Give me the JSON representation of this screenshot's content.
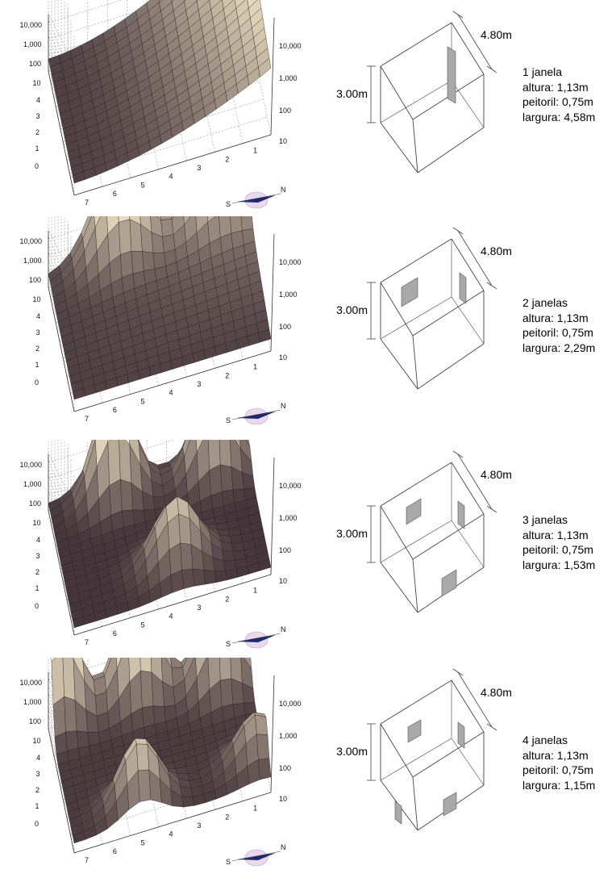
{
  "chart_data": [
    {
      "type": "surface",
      "windows": 1,
      "z_scale": "log",
      "z_ticks_left": [
        "10,000",
        "1,000",
        "100",
        "10",
        "4",
        "3",
        "2",
        "1",
        "0"
      ],
      "z_ticks_right": [
        "10,000",
        "1,000",
        "100",
        "10"
      ],
      "x_ticks": [
        "7",
        "6",
        "5",
        "4",
        "3",
        "2",
        "1"
      ]
    },
    {
      "type": "surface",
      "windows": 2,
      "z_scale": "log",
      "z_ticks_left": [
        "10,000",
        "1,000",
        "100",
        "10",
        "4",
        "3",
        "2",
        "1",
        "0"
      ],
      "z_ticks_right": [
        "10,000",
        "1,000",
        "100",
        "10"
      ],
      "x_ticks": [
        "7",
        "6",
        "5",
        "4",
        "3",
        "2",
        "1"
      ]
    },
    {
      "type": "surface",
      "windows": 3,
      "z_scale": "log",
      "z_ticks_left": [
        "10,000",
        "1,000",
        "100",
        "10",
        "4",
        "3",
        "2",
        "1",
        "0"
      ],
      "z_ticks_right": [
        "10,000",
        "1,000",
        "100",
        "10"
      ],
      "x_ticks": [
        "7",
        "6",
        "5",
        "4",
        "3",
        "2",
        "1"
      ]
    },
    {
      "type": "surface",
      "windows": 4,
      "z_scale": "log",
      "z_ticks_left": [
        "10,000",
        "1,000",
        "100",
        "10",
        "4",
        "3",
        "2",
        "1",
        "0"
      ],
      "z_ticks_right": [
        "10,000",
        "1,000",
        "100",
        "10"
      ],
      "x_ticks": [
        "7",
        "6",
        "5",
        "4",
        "3",
        "2",
        "1"
      ]
    }
  ],
  "colors": {
    "surface_low": "#2b1b26",
    "surface_high": "#fff4d2",
    "window_fill": "#a9a9a9",
    "line": "#333333"
  },
  "compass": {
    "icon": "compass-rose-icon",
    "labels": [
      "N",
      "S"
    ]
  },
  "rooms": [
    {
      "height": "3.00m",
      "depth": "4.80m",
      "windows": 1,
      "lines": [
        "1 janela",
        "altura: 1,13m",
        "peitoril: 0,75m",
        "largura: 4,58m"
      ]
    },
    {
      "height": "3.00m",
      "depth": "4.80m",
      "windows": 2,
      "lines": [
        "2 janelas",
        "altura: 1,13m",
        "peitoril: 0,75m",
        "largura: 2,29m"
      ]
    },
    {
      "height": "3.00m",
      "depth": "4.80m",
      "windows": 3,
      "lines": [
        "3 janelas",
        "altura: 1,13m",
        "peitoril: 0,75m",
        "largura: 1,53m"
      ]
    },
    {
      "height": "3.00m",
      "depth": "4.80m",
      "windows": 4,
      "lines": [
        "4 janelas",
        "altura: 1,13m",
        "peitoril: 0,75m",
        "largura: 1,15m"
      ]
    }
  ]
}
